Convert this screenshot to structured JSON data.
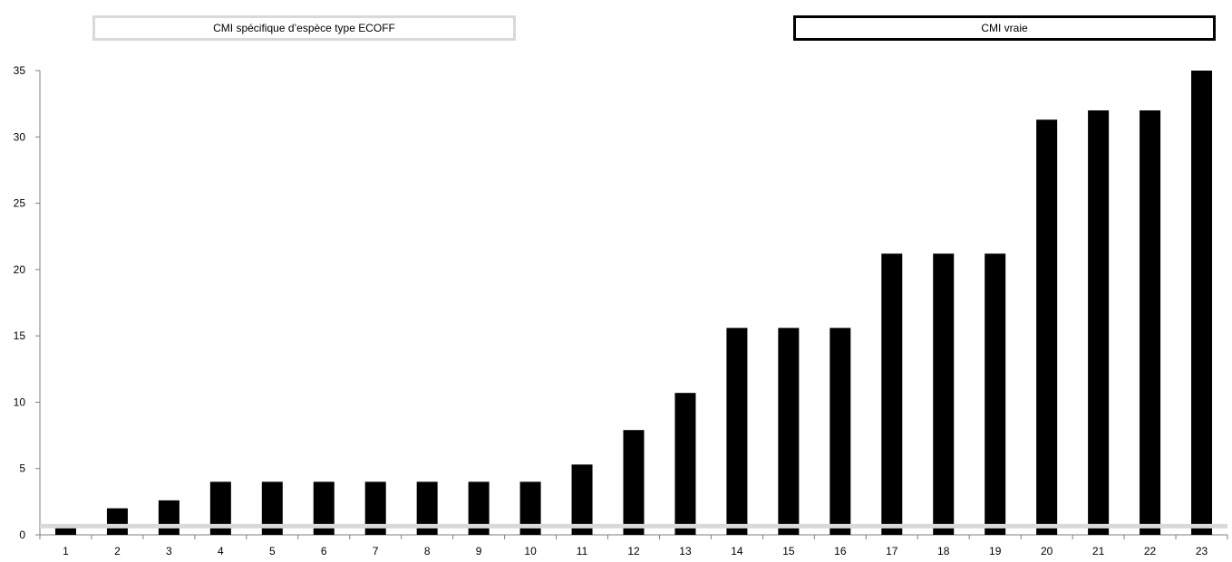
{
  "legend": {
    "ecoff_label": "CMI spécifique d’espèce type ECOFF",
    "vraie_label": "CMI vraie"
  },
  "colors": {
    "bar": "#000000",
    "ecoff_line": "#d9d9d9",
    "axis": "#7f7f7f"
  },
  "chart_data": {
    "type": "bar",
    "title": "",
    "xlabel": "",
    "ylabel": "",
    "ylim": [
      0,
      35
    ],
    "yticks": [
      0,
      5,
      10,
      15,
      20,
      25,
      30,
      35
    ],
    "categories": [
      "1",
      "2",
      "3",
      "4",
      "5",
      "6",
      "7",
      "8",
      "9",
      "10",
      "11",
      "12",
      "13",
      "14",
      "15",
      "16",
      "17",
      "18",
      "19",
      "20",
      "21",
      "22",
      "23"
    ],
    "series": [
      {
        "name": "CMI vraie",
        "values": [
          0.7,
          2.0,
          2.6,
          4.0,
          4.0,
          4.0,
          4.0,
          4.0,
          4.0,
          4.0,
          5.3,
          7.9,
          10.7,
          15.6,
          15.6,
          15.6,
          21.2,
          21.2,
          21.2,
          31.3,
          32.0,
          32.0,
          35.0
        ]
      },
      {
        "name": "CMI spécifique d’espèce type ECOFF",
        "type": "line",
        "value": 1.0
      }
    ],
    "grid": false,
    "legend_position": "top"
  }
}
